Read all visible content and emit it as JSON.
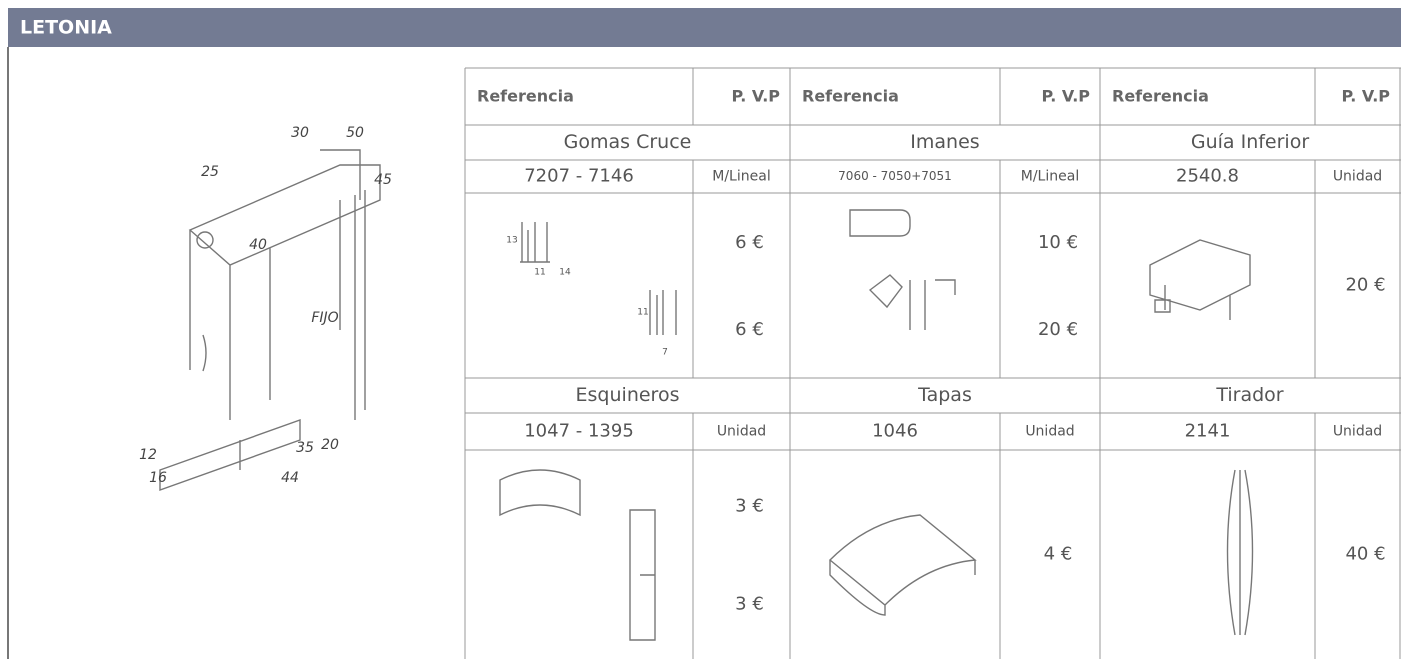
{
  "header": {
    "title": "LETONIA"
  },
  "diagram": {
    "labels": [
      "30",
      "50",
      "25",
      "45",
      "40",
      "FIJO",
      "12",
      "16",
      "35",
      "20",
      "44"
    ]
  },
  "table": {
    "column_headers": [
      "Referencia",
      "P. V.P",
      "Referencia",
      "P. V.P",
      "Referencia",
      "P. V.P"
    ],
    "sections": [
      {
        "groups": [
          {
            "name": "Gomas Cruce",
            "code": "7207 - 7146",
            "unit": "M/Lineal",
            "prices": [
              "6 €",
              "6 €"
            ],
            "dims": [
              "13",
              "11",
              "14",
              "11",
              "7"
            ]
          },
          {
            "name": "Imanes",
            "code": "7060 - 7050+7051",
            "unit": "M/Lineal",
            "prices": [
              "10 €",
              "20 €"
            ]
          },
          {
            "name": "Guía Inferior",
            "code": "2540.8",
            "unit": "Unidad",
            "prices": [
              "20 €"
            ]
          }
        ]
      },
      {
        "groups": [
          {
            "name": "Esquineros",
            "code": "1047 - 1395",
            "unit": "Unidad",
            "prices": [
              "3 €",
              "3 €"
            ]
          },
          {
            "name": "Tapas",
            "code": "1046",
            "unit": "Unidad",
            "prices": [
              "4 €"
            ]
          },
          {
            "name": "Tirador",
            "code": "2141",
            "unit": "Unidad",
            "prices": [
              "40 €"
            ]
          }
        ]
      }
    ]
  }
}
